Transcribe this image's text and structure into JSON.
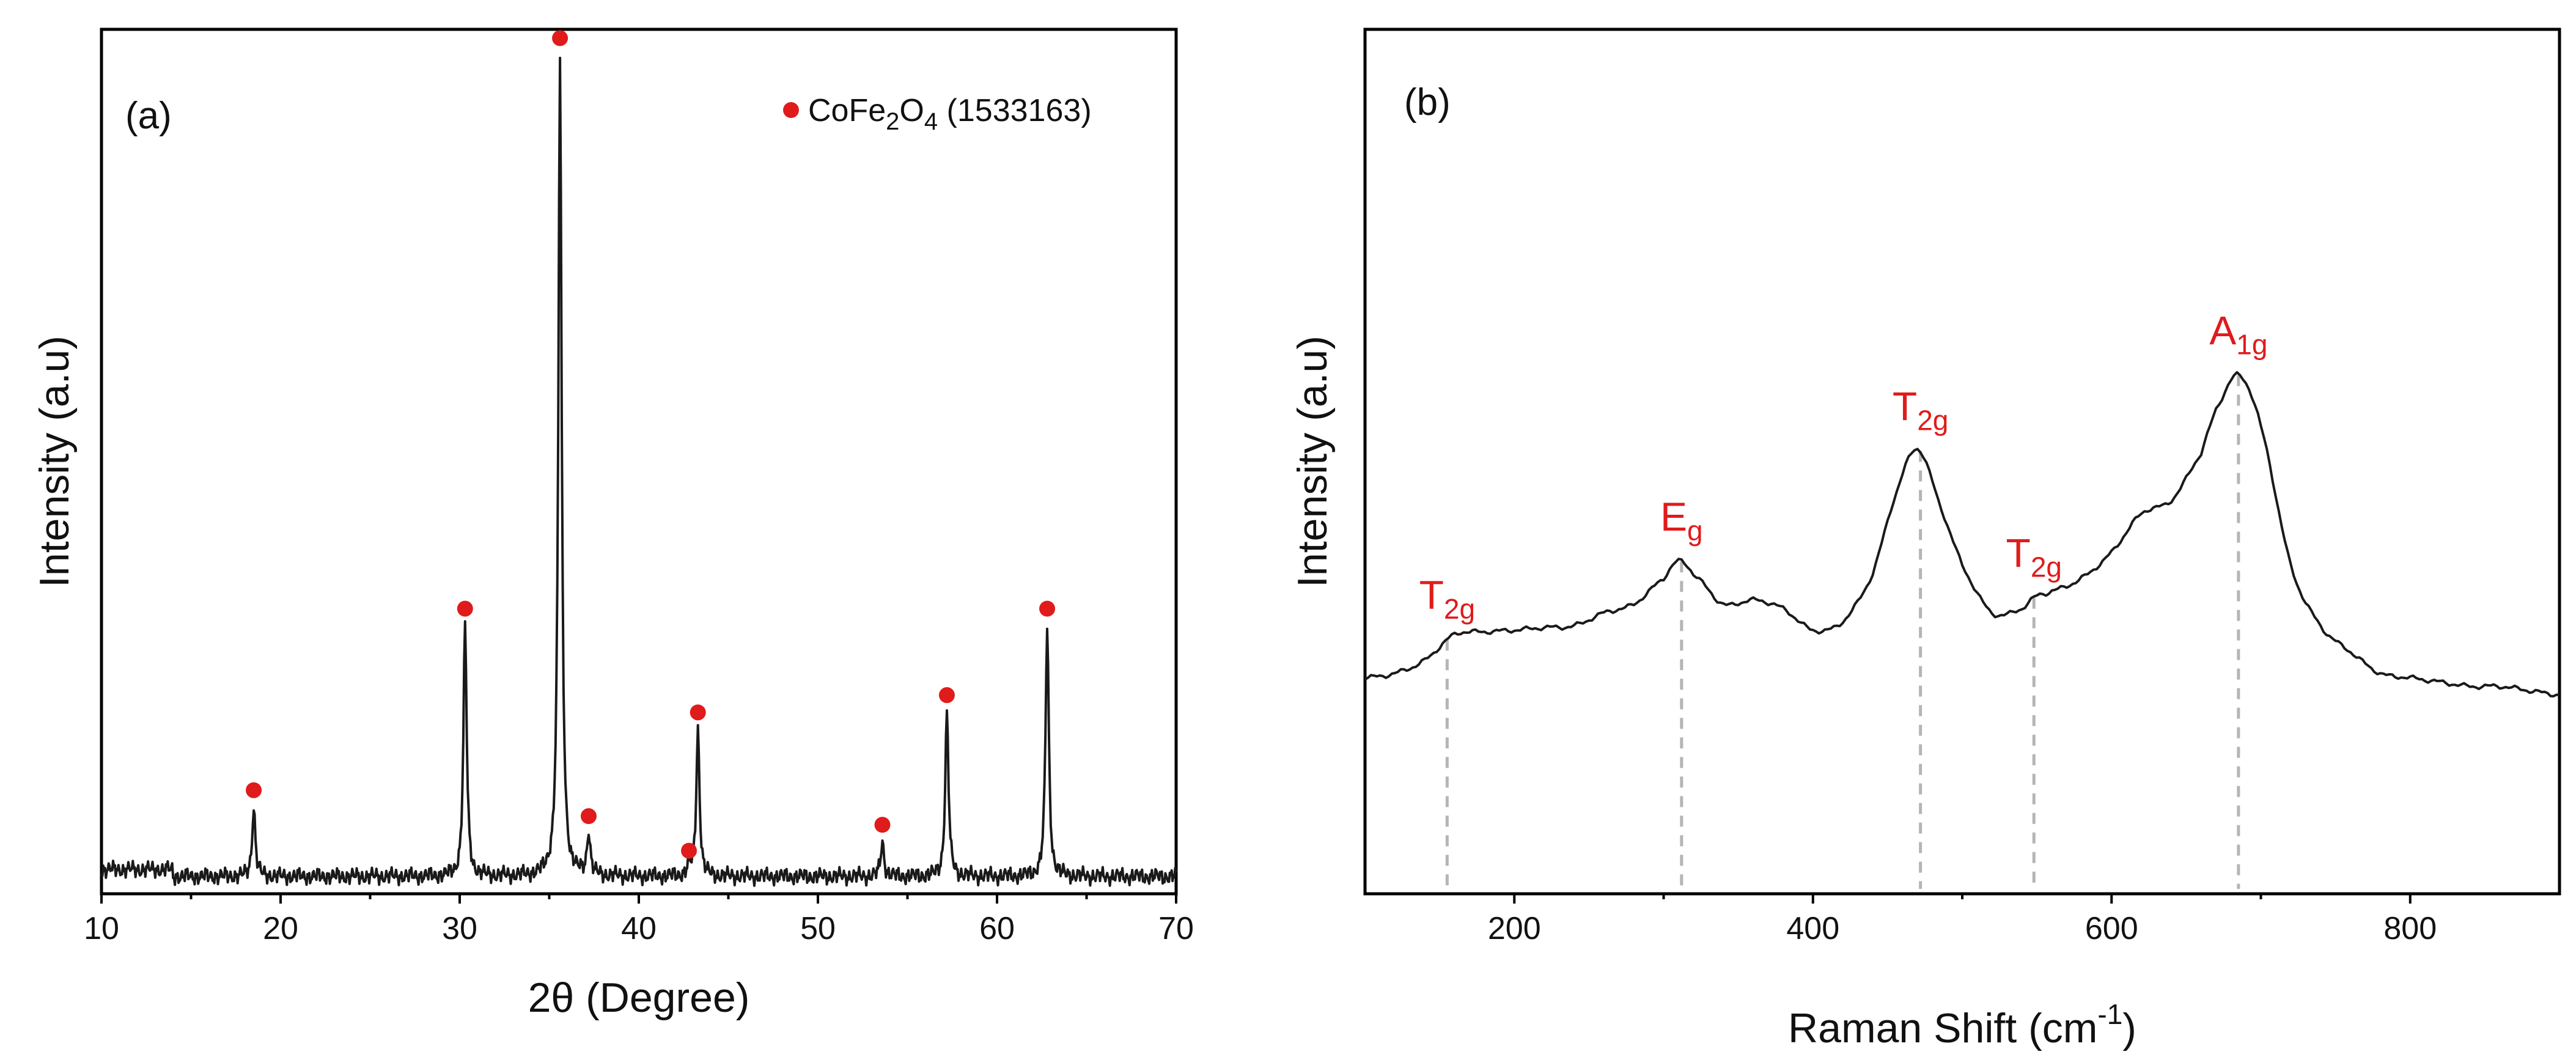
{
  "chart_data": [
    {
      "type": "line",
      "panel_label": "(a)",
      "xlabel": "2θ (Degree)",
      "ylabel": "Intensity (a.u)",
      "xlim": [
        10,
        70
      ],
      "ylim": [
        0,
        100
      ],
      "yticks_visible": false,
      "xticks": [
        10,
        20,
        30,
        40,
        50,
        60,
        70
      ],
      "xtick_labels": [
        "10",
        "20",
        "30",
        "40",
        "50",
        "60",
        "70"
      ],
      "legend": {
        "marker": "circle",
        "color": "#e01b1b",
        "label": "CoFe2O4 (1533163)",
        "label_main": "CoFe",
        "label_sub1": "2",
        "label_mid": "O",
        "label_sub2": "4",
        "label_tail": " (1533163)",
        "placement": "top-right"
      },
      "baseline": 2,
      "peaks": [
        {
          "x": 18.5,
          "height": 10,
          "marked": true
        },
        {
          "x": 30.3,
          "height": 31,
          "marked": true
        },
        {
          "x": 35.6,
          "height": 97,
          "marked": true
        },
        {
          "x": 37.2,
          "height": 7,
          "marked": true
        },
        {
          "x": 42.8,
          "height": 3,
          "marked": true
        },
        {
          "x": 43.3,
          "height": 19,
          "marked": true
        },
        {
          "x": 53.6,
          "height": 6,
          "marked": true
        },
        {
          "x": 57.2,
          "height": 21,
          "marked": true
        },
        {
          "x": 62.8,
          "height": 31,
          "marked": true
        }
      ]
    },
    {
      "type": "line",
      "panel_label": "(b)",
      "xlabel": "Raman Shift (cm",
      "xlabel_sup": "-1",
      "xlabel_end": ")",
      "ylabel": "Intensity (a.u)",
      "xlim": [
        100,
        900
      ],
      "ylim": [
        0,
        100
      ],
      "yticks_visible": false,
      "xticks": [
        200,
        400,
        600,
        800
      ],
      "xtick_labels": [
        "200",
        "400",
        "600",
        "800"
      ],
      "x": [
        100,
        120,
        140,
        160,
        180,
        200,
        220,
        240,
        260,
        280,
        300,
        310,
        320,
        340,
        360,
        380,
        400,
        420,
        440,
        455,
        470,
        485,
        500,
        520,
        540,
        550,
        560,
        580,
        600,
        620,
        640,
        660,
        670,
        685,
        700,
        720,
        740,
        760,
        780,
        800,
        820,
        840,
        860,
        880,
        900
      ],
      "y": [
        25,
        25.5,
        27,
        30,
        30.3,
        30.5,
        30.8,
        31,
        32.5,
        33.5,
        36.5,
        38.5,
        37,
        33.5,
        34,
        33,
        30.5,
        31.5,
        37,
        46,
        51.5,
        45,
        38,
        32.5,
        33,
        34.5,
        35,
        36.5,
        39.5,
        44,
        45.5,
        51,
        56,
        60,
        54,
        38,
        31,
        28,
        25.5,
        25,
        24.5,
        24,
        24,
        23.5,
        23
      ],
      "peaks": [
        {
          "x": 155,
          "label_main": "T",
          "label_sub": "2g"
        },
        {
          "x": 312,
          "label_main": "E",
          "label_sub": "g"
        },
        {
          "x": 472,
          "label_main": "T",
          "label_sub": "2g"
        },
        {
          "x": 548,
          "label_main": "T",
          "label_sub": "2g"
        },
        {
          "x": 685,
          "label_main": "A",
          "label_sub": "1g"
        }
      ]
    }
  ]
}
